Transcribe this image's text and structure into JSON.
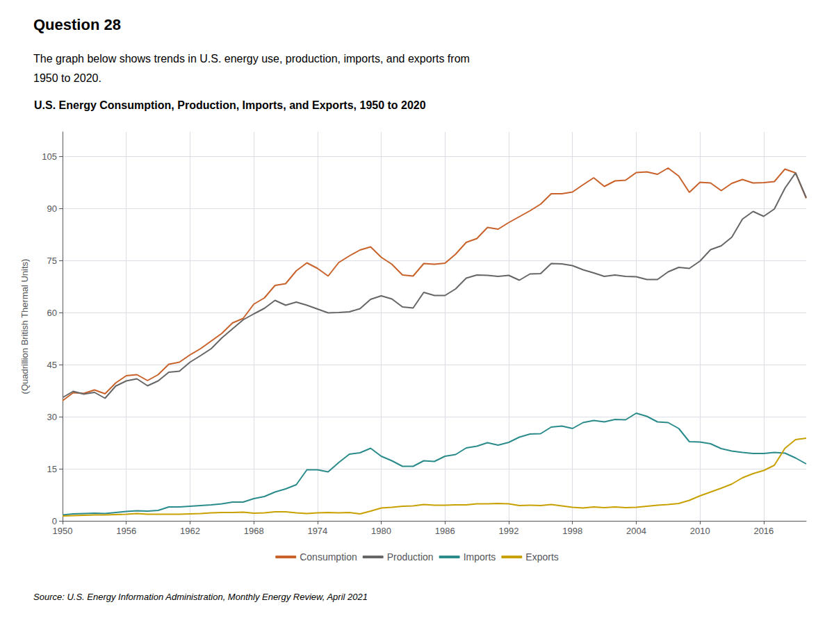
{
  "chart_data": {
    "type": "line",
    "title": "U.S. Energy Consumption, Production, Imports, and Exports, 1950 to 2020",
    "annotations": [
      "Question 28",
      "The graph below shows trends in U.S. energy use, production, imports, and exports from",
      "1950 to 2020.",
      "Source: U.S. Energy Information Administration, Monthly Energy Review, April 2021"
    ],
    "ylabel": "(Quadrillion British Thermal Units)",
    "x": [
      1950,
      1951,
      1952,
      1953,
      1954,
      1955,
      1956,
      1957,
      1958,
      1959,
      1960,
      1961,
      1962,
      1963,
      1964,
      1965,
      1966,
      1967,
      1968,
      1969,
      1970,
      1971,
      1972,
      1973,
      1974,
      1975,
      1976,
      1977,
      1978,
      1979,
      1980,
      1981,
      1982,
      1983,
      1984,
      1985,
      1986,
      1987,
      1988,
      1989,
      1990,
      1991,
      1992,
      1993,
      1994,
      1995,
      1996,
      1997,
      1998,
      1999,
      2000,
      2001,
      2002,
      2003,
      2004,
      2005,
      2006,
      2007,
      2008,
      2009,
      2010,
      2011,
      2012,
      2013,
      2014,
      2015,
      2016,
      2017,
      2018,
      2019,
      2020
    ],
    "series": [
      {
        "name": "Consumption",
        "color": "#C8622A",
        "values": [
          34.6,
          36.9,
          36.7,
          37.7,
          36.6,
          39.7,
          41.8,
          42.1,
          40.4,
          42.1,
          45.1,
          45.7,
          47.8,
          49.6,
          51.8,
          54.0,
          57.0,
          58.3,
          62.4,
          64.2,
          67.8,
          68.3,
          72.0,
          74.3,
          72.7,
          70.5,
          74.4,
          76.3,
          78.0,
          78.9,
          75.9,
          73.9,
          70.8,
          70.5,
          74.1,
          73.9,
          74.2,
          76.8,
          80.2,
          81.3,
          84.5,
          84.0,
          85.9,
          87.6,
          89.3,
          91.2,
          94.2,
          94.2,
          94.7,
          96.8,
          98.8,
          96.3,
          97.9,
          98.1,
          100.3,
          100.5,
          99.8,
          101.6,
          99.3,
          94.6,
          97.5,
          97.3,
          95.1,
          97.2,
          98.3,
          97.3,
          97.4,
          97.7,
          101.3,
          100.2,
          92.9
        ]
      },
      {
        "name": "Production",
        "color": "#666666",
        "values": [
          35.5,
          37.3,
          36.5,
          37.0,
          35.3,
          38.8,
          40.3,
          40.9,
          38.9,
          40.3,
          42.8,
          43.1,
          45.7,
          47.6,
          49.6,
          52.7,
          55.3,
          57.9,
          59.6,
          61.2,
          63.5,
          62.1,
          63.0,
          62.1,
          61.0,
          59.9,
          60.0,
          60.2,
          61.1,
          63.8,
          64.8,
          63.9,
          61.6,
          61.3,
          65.8,
          64.9,
          64.9,
          66.8,
          69.9,
          70.8,
          70.7,
          70.4,
          70.7,
          69.3,
          71.1,
          71.2,
          74.1,
          74.0,
          73.5,
          72.3,
          71.4,
          70.4,
          70.8,
          70.4,
          70.3,
          69.5,
          69.5,
          71.7,
          73.0,
          72.7,
          74.8,
          78.1,
          79.2,
          81.7,
          86.9,
          89.1,
          87.7,
          89.8,
          95.8,
          100.2,
          93.1
        ]
      },
      {
        "name": "Imports",
        "color": "#2B8B8B",
        "values": [
          1.7,
          2.0,
          2.1,
          2.2,
          2.1,
          2.4,
          2.7,
          2.9,
          2.8,
          3.0,
          4.0,
          4.0,
          4.2,
          4.4,
          4.6,
          4.9,
          5.4,
          5.4,
          6.4,
          7.0,
          8.3,
          9.2,
          10.4,
          14.7,
          14.7,
          14.1,
          16.8,
          19.2,
          19.6,
          20.9,
          18.6,
          17.3,
          15.7,
          15.7,
          17.3,
          17.1,
          18.6,
          19.1,
          21.0,
          21.5,
          22.5,
          21.8,
          22.6,
          24.1,
          25.0,
          25.1,
          27.0,
          27.3,
          26.6,
          28.3,
          28.9,
          28.5,
          29.2,
          29.1,
          31.0,
          30.1,
          28.5,
          28.3,
          26.6,
          22.8,
          22.7,
          22.2,
          20.8,
          20.1,
          19.7,
          19.4,
          19.4,
          19.7,
          19.5,
          18.1,
          16.4
        ]
      },
      {
        "name": "Exports",
        "color": "#C8A000",
        "values": [
          1.4,
          1.5,
          1.6,
          1.7,
          1.7,
          1.8,
          1.9,
          2.1,
          1.9,
          1.9,
          1.9,
          1.9,
          2.0,
          2.1,
          2.3,
          2.4,
          2.4,
          2.5,
          2.2,
          2.3,
          2.6,
          2.6,
          2.3,
          2.1,
          2.3,
          2.4,
          2.3,
          2.4,
          2.0,
          2.8,
          3.7,
          3.9,
          4.2,
          4.3,
          4.7,
          4.5,
          4.5,
          4.6,
          4.6,
          4.9,
          4.9,
          5.0,
          4.9,
          4.4,
          4.5,
          4.4,
          4.7,
          4.3,
          3.9,
          3.7,
          4.0,
          3.8,
          4.0,
          3.8,
          3.9,
          4.2,
          4.5,
          4.7,
          5.0,
          5.9,
          7.2,
          8.3,
          9.4,
          10.6,
          12.4,
          13.6,
          14.5,
          16.0,
          20.9,
          23.4,
          23.8
        ]
      }
    ],
    "xlim": [
      1950,
      2020
    ],
    "xticks": [
      1950,
      1956,
      1962,
      1968,
      1974,
      1980,
      1986,
      1992,
      1998,
      2004,
      2010,
      2016
    ],
    "ylim": [
      0,
      112
    ],
    "yticks": [
      0,
      15,
      30,
      45,
      60,
      75,
      90,
      105
    ],
    "grid": true,
    "legend": "bottom"
  }
}
